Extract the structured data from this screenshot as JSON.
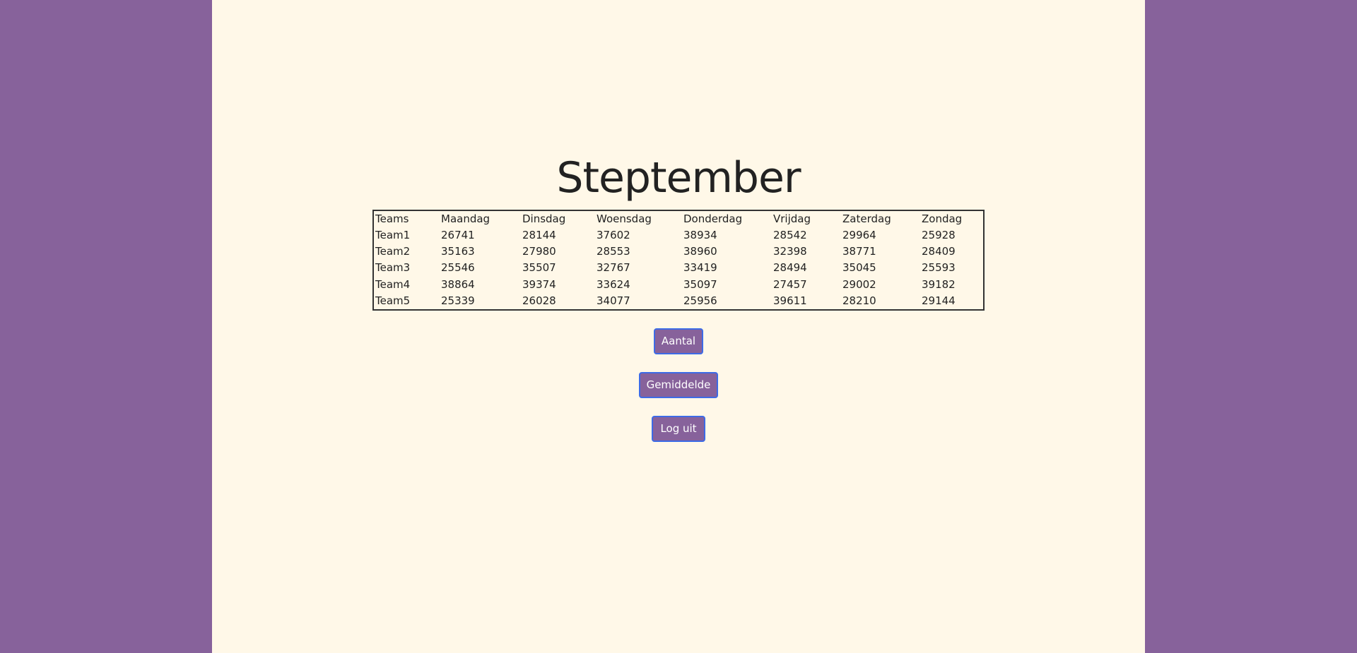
{
  "page": {
    "title": "Steptember",
    "colors": {
      "side_background": "#87629b",
      "content_background": "#fff8e8",
      "button_background": "#87629b",
      "button_border": "#3d6be6"
    }
  },
  "table": {
    "headers": [
      "Teams",
      "Maandag",
      "Dinsdag",
      "Woensdag",
      "Donderdag",
      "Vrijdag",
      "Zaterdag",
      "Zondag"
    ],
    "rows": [
      [
        "Team1",
        "26741",
        "28144",
        "37602",
        "38934",
        "28542",
        "29964",
        "25928"
      ],
      [
        "Team2",
        "35163",
        "27980",
        "28553",
        "38960",
        "32398",
        "38771",
        "28409"
      ],
      [
        "Team3",
        "25546",
        "35507",
        "32767",
        "33419",
        "28494",
        "35045",
        "25593"
      ],
      [
        "Team4",
        "38864",
        "39374",
        "33624",
        "35097",
        "27457",
        "29002",
        "39182"
      ],
      [
        "Team5",
        "25339",
        "26028",
        "34077",
        "25956",
        "39611",
        "28210",
        "29144"
      ]
    ]
  },
  "buttons": {
    "aantal": "Aantal",
    "gemiddelde": "Gemiddelde",
    "log_uit": "Log uit"
  }
}
